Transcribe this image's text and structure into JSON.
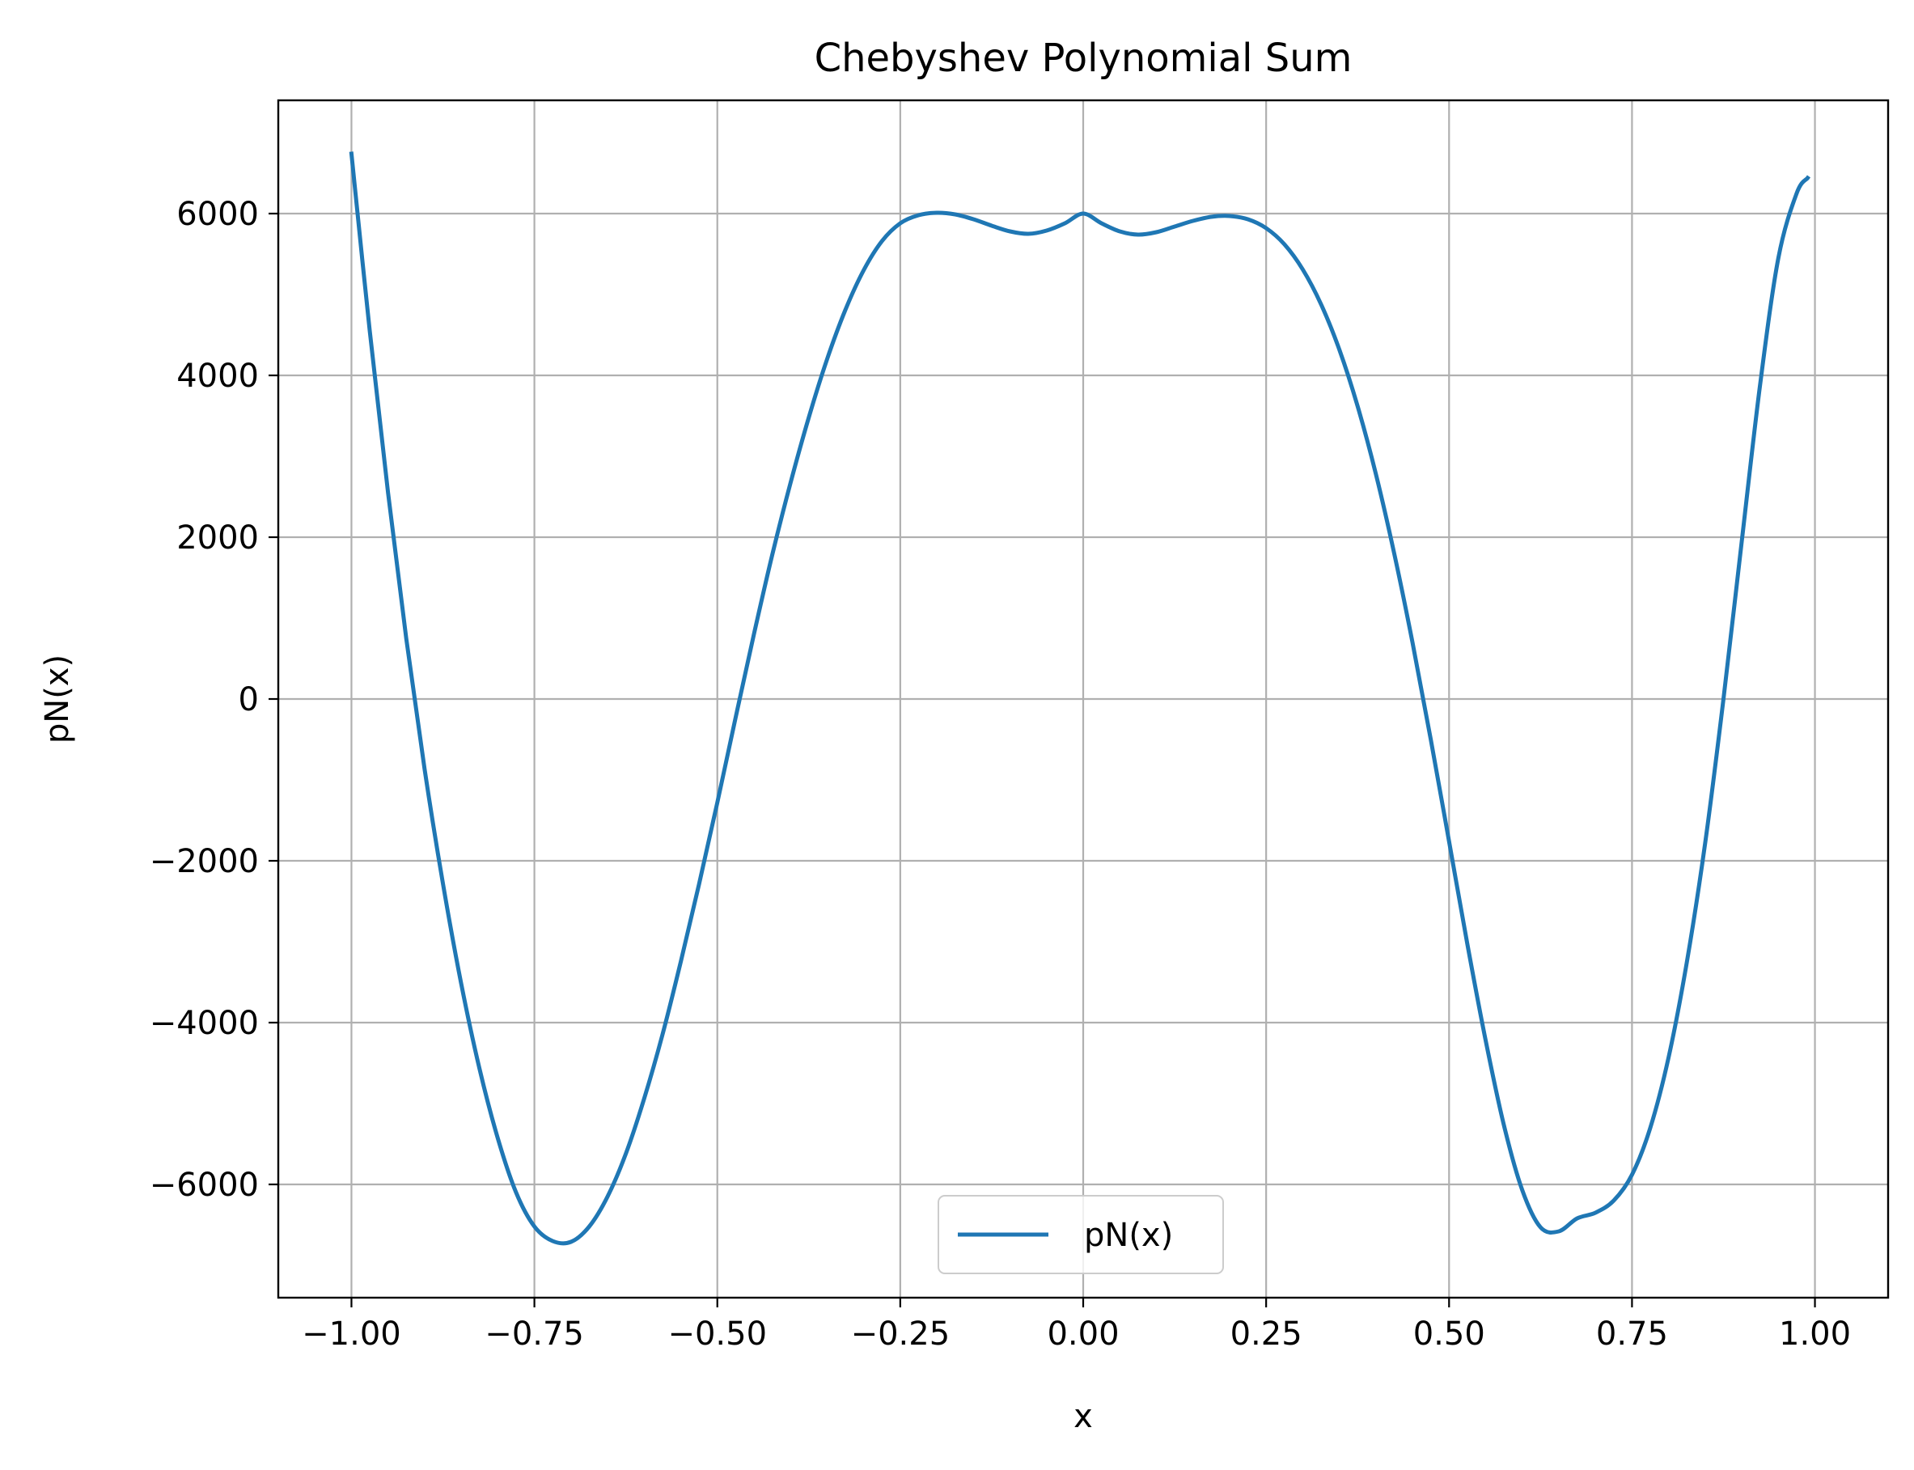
{
  "chart_data": {
    "type": "line",
    "title": "Chebyshev Polynomial Sum",
    "xlabel": "x",
    "ylabel": "pN(x)",
    "xlim": [
      -1.1,
      1.1
    ],
    "ylim": [
      -7400,
      7400
    ],
    "xticks": [
      -1.0,
      -0.75,
      -0.5,
      -0.25,
      0.0,
      0.25,
      0.5,
      0.75,
      1.0
    ],
    "xtick_labels": [
      "−1.00",
      "−0.75",
      "−0.50",
      "−0.25",
      "0.00",
      "0.25",
      "0.50",
      "0.75",
      "1.00"
    ],
    "yticks": [
      -6000,
      -4000,
      -2000,
      0,
      2000,
      4000,
      6000
    ],
    "ytick_labels": [
      "−6000",
      "−4000",
      "−2000",
      "0",
      "2000",
      "4000",
      "6000"
    ],
    "grid": true,
    "legend": "lower center",
    "series": [
      {
        "name": "pN(x)",
        "color": "#1f77b4",
        "x": [
          -1.0,
          -0.975,
          -0.95,
          -0.925,
          -0.9,
          -0.875,
          -0.85,
          -0.825,
          -0.8,
          -0.775,
          -0.75,
          -0.725,
          -0.7,
          -0.675,
          -0.65,
          -0.625,
          -0.6,
          -0.575,
          -0.55,
          -0.525,
          -0.5,
          -0.475,
          -0.45,
          -0.425,
          -0.4,
          -0.375,
          -0.35,
          -0.325,
          -0.3,
          -0.275,
          -0.25,
          -0.225,
          -0.2,
          -0.175,
          -0.15,
          -0.125,
          -0.1,
          -0.075,
          -0.05,
          -0.025,
          0.0,
          0.025,
          0.05,
          0.075,
          0.1,
          0.125,
          0.15,
          0.175,
          0.2,
          0.225,
          0.25,
          0.275,
          0.3,
          0.325,
          0.35,
          0.375,
          0.4,
          0.425,
          0.45,
          0.475,
          0.5,
          0.525,
          0.55,
          0.575,
          0.6,
          0.625,
          0.65,
          0.675,
          0.7,
          0.725,
          0.75,
          0.775,
          0.8,
          0.825,
          0.85,
          0.875,
          0.9,
          0.925,
          0.95,
          0.975,
          0.99
        ],
        "y": [
          6740,
          4550,
          2550,
          740,
          -870,
          -2280,
          -3520,
          -4570,
          -5430,
          -6100,
          -6520,
          -6700,
          -6710,
          -6520,
          -6150,
          -5620,
          -4940,
          -4150,
          -3250,
          -2290,
          -1280,
          -230,
          800,
          1780,
          2670,
          3480,
          4200,
          4810,
          5300,
          5660,
          5880,
          5980,
          6010,
          5990,
          5930,
          5850,
          5780,
          5750,
          5790,
          5880,
          6000,
          5880,
          5780,
          5740,
          5770,
          5840,
          5910,
          5960,
          5970,
          5930,
          5820,
          5620,
          5310,
          4880,
          4320,
          3620,
          2780,
          1800,
          700,
          -500,
          -1760,
          -3030,
          -4220,
          -5270,
          -6070,
          -6530,
          -6580,
          -6420,
          -6350,
          -6200,
          -5880,
          -5300,
          -4430,
          -3250,
          -1780,
          0,
          1950,
          3880,
          5450,
          6250,
          6440
        ]
      }
    ]
  }
}
